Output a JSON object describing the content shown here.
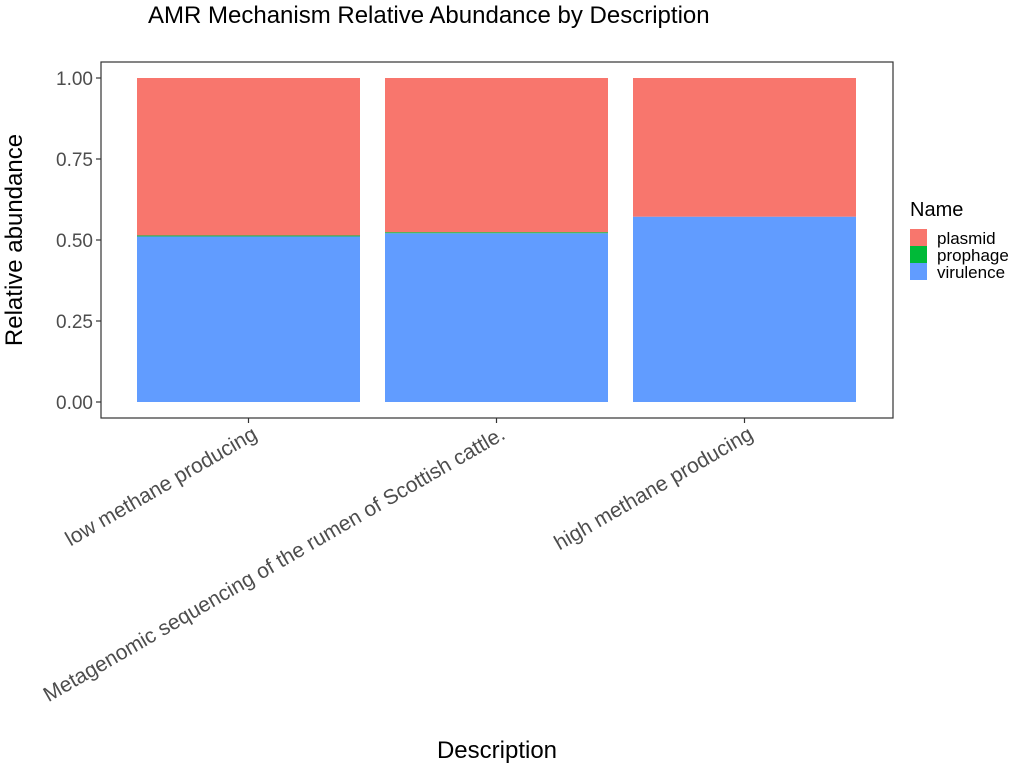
{
  "chart_data": {
    "type": "bar",
    "stacked": true,
    "title": "AMR Mechanism Relative Abundance by Description",
    "xlabel": "Description",
    "ylabel": "Relative abundance",
    "categories": [
      "low methane producing",
      "Metagenomic sequencing of the rumen of Scottish cattle.",
      "high methane producing"
    ],
    "series": [
      {
        "name": "virulence",
        "color": "#619CFF",
        "values": [
          0.511,
          0.521,
          0.572
        ]
      },
      {
        "name": "prophage",
        "color": "#00BA38",
        "values": [
          0.003,
          0.003,
          0.0
        ]
      },
      {
        "name": "plasmid",
        "color": "#F8766D",
        "values": [
          0.486,
          0.476,
          0.428
        ]
      }
    ],
    "ylim": [
      0,
      1.0
    ],
    "yticks": [
      "0.00",
      "0.25",
      "0.50",
      "0.75",
      "1.00"
    ],
    "ytick_values": [
      0,
      0.25,
      0.5,
      0.75,
      1.0
    ],
    "grid": false,
    "legend": {
      "title": "Name",
      "position": "right",
      "order": [
        "plasmid",
        "prophage",
        "virulence"
      ]
    }
  }
}
